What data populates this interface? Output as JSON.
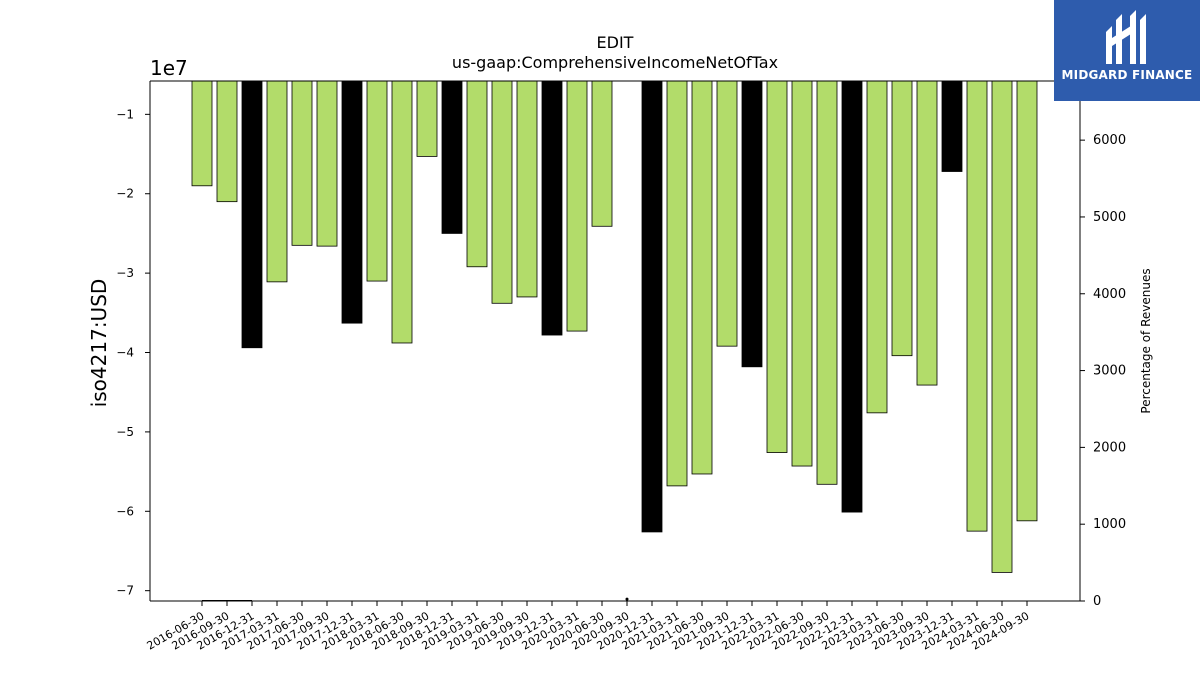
{
  "chart_data": {
    "type": "bar",
    "title": "EDIT",
    "subtitle": "us-gaap:ComprehensiveIncomeNetOfTax",
    "ylabel": "iso4217:USD",
    "ylabel_right": "Percentage of Revenues",
    "y_offset_label": "1e7",
    "ylim": [
      -71300000,
      -5800000
    ],
    "yticks": [
      -1,
      -2,
      -3,
      -4,
      -5,
      -6,
      -7
    ],
    "y2lim": [
      0,
      6770
    ],
    "y2ticks": [
      0,
      1000,
      2000,
      3000,
      4000,
      5000,
      6000
    ],
    "grid": false,
    "categories": [
      "2016-06-30",
      "2016-09-30",
      "2016-12-31",
      "2017-03-31",
      "2017-06-30",
      "2017-09-30",
      "2017-12-31",
      "2018-03-31",
      "2018-06-30",
      "2018-09-30",
      "2018-12-31",
      "2019-03-31",
      "2019-06-30",
      "2019-09-30",
      "2019-12-31",
      "2020-03-31",
      "2020-06-30",
      "2020-09-30",
      "2020-12-31",
      "2021-03-31",
      "2021-06-30",
      "2021-09-30",
      "2021-12-31",
      "2022-03-31",
      "2022-06-30",
      "2022-09-30",
      "2022-12-31",
      "2023-03-31",
      "2023-06-30",
      "2023-09-30",
      "2023-12-31",
      "2024-03-31",
      "2024-06-30",
      "2024-09-30"
    ],
    "values": [
      -19000000,
      -21000000,
      -39400000,
      -31100000,
      -26500000,
      -26600000,
      -36300000,
      -31000000,
      -38800000,
      -15300000,
      -25000000,
      -29200000,
      -33800000,
      -33000000,
      -37800000,
      -37300000,
      -24100000,
      null,
      -62600000,
      -56800000,
      -55300000,
      -39200000,
      -41800000,
      -52600000,
      -54300000,
      -56600000,
      -60100000,
      -47600000,
      -40400000,
      -44100000,
      -17200000,
      -62500000,
      -67700000,
      -61200000
    ],
    "bar_kind": [
      "quarter",
      "quarter",
      "annual",
      "quarter",
      "quarter",
      "quarter",
      "annual",
      "quarter",
      "quarter",
      "quarter",
      "annual",
      "quarter",
      "quarter",
      "quarter",
      "annual",
      "quarter",
      "quarter",
      "quarter",
      "annual",
      "quarter",
      "quarter",
      "quarter",
      "annual",
      "quarter",
      "quarter",
      "quarter",
      "annual",
      "quarter",
      "quarter",
      "quarter",
      "annual",
      "quarter",
      "quarter",
      "quarter"
    ],
    "pct_revenues": [
      2,
      2,
      2,
      null,
      null,
      null,
      null,
      null,
      null,
      null,
      null,
      null,
      null,
      null,
      null,
      null,
      null,
      25,
      null,
      null,
      null,
      null,
      null,
      null,
      null,
      null,
      null,
      null,
      null,
      null,
      null,
      null,
      null,
      null
    ],
    "colors": {
      "quarter": "#b2dc6a",
      "annual": "#000000",
      "bar_edge": "#000000",
      "pct_line": "#000000"
    }
  },
  "logo": {
    "text": "MIDGARD FINANCE",
    "background": "#2e5cad"
  }
}
